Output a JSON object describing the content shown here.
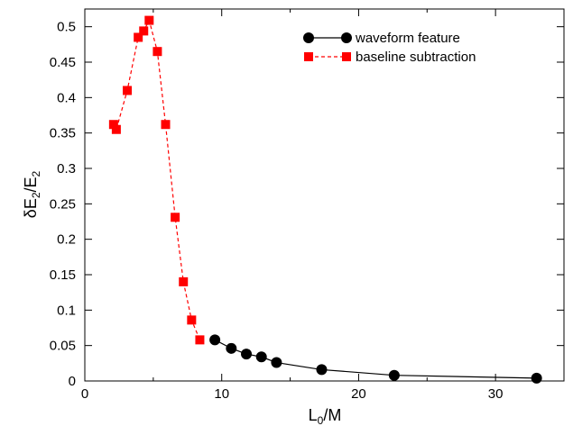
{
  "chart_data": {
    "type": "line",
    "xlabel": {
      "main": "L",
      "sub": "0",
      "tail": "/M"
    },
    "ylabel": {
      "p1": "δE",
      "s1": "2",
      "p2": "/E",
      "s2": "2"
    },
    "xlim": [
      0,
      35
    ],
    "ylim": [
      0,
      0.525
    ],
    "x_ticks": [
      0,
      10,
      20,
      30
    ],
    "y_ticks": [
      0,
      0.05,
      0.1,
      0.15,
      0.2,
      0.25,
      0.3,
      0.35,
      0.4,
      0.45,
      0.5
    ],
    "legend_position": "top-right",
    "series": [
      {
        "name": "waveform feature",
        "color": "#000000",
        "marker": "circle",
        "line": "solid",
        "x": [
          9.5,
          10.7,
          11.8,
          12.9,
          14.0,
          17.3,
          22.6,
          33.0
        ],
        "y": [
          0.058,
          0.046,
          0.038,
          0.034,
          0.026,
          0.016,
          0.008,
          0.004
        ]
      },
      {
        "name": "baseline subtraction",
        "color": "#ff0000",
        "marker": "square",
        "line": "dashed",
        "x": [
          2.1,
          2.3,
          3.1,
          3.9,
          4.3,
          4.7,
          5.3,
          5.9,
          6.6,
          7.2,
          7.8,
          8.4
        ],
        "y": [
          0.362,
          0.355,
          0.41,
          0.485,
          0.494,
          0.509,
          0.465,
          0.362,
          0.231,
          0.14,
          0.086,
          0.058
        ]
      }
    ]
  }
}
